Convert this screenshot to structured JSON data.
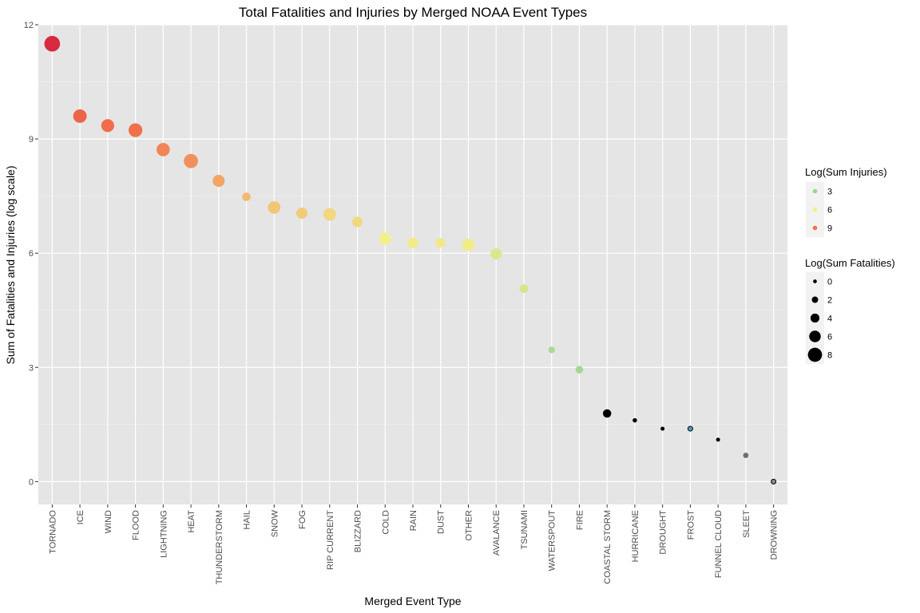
{
  "chart_data": {
    "type": "scatter",
    "title": "Total Fatalities and Injuries by Merged NOAA Event Types",
    "xlabel": "Merged Event Type",
    "ylabel": "Sum of Fatalities and Injuries (log scale)",
    "ylim": [
      -0.6,
      12
    ],
    "yticks": [
      0,
      3,
      6,
      9,
      12
    ],
    "grid": true,
    "legend_position": "right",
    "categories": [
      "TORNADO",
      "ICE",
      "WIND",
      "FLOOD",
      "LIGHTNING",
      "HEAT",
      "THUNDERSTORM",
      "HAIL",
      "SNOW",
      "FOG",
      "RIP CURRENT",
      "BLIZZARD",
      "COLD",
      "RAIN",
      "DUST",
      "OTHER",
      "AVALANCE",
      "TSUNAMI",
      "WATERSPOUT",
      "FIRE",
      "COASTAL STORM",
      "HURRICANE",
      "DROUGHT",
      "FROST",
      "FUNNEL CLOUD",
      "SLEET",
      "DROWNING"
    ],
    "values": [
      11.5,
      9.6,
      9.35,
      9.23,
      8.72,
      8.42,
      7.9,
      7.48,
      7.2,
      7.05,
      7.02,
      6.82,
      6.38,
      6.27,
      6.27,
      6.22,
      5.98,
      5.07,
      3.46,
      2.94,
      1.79,
      1.61,
      1.39,
      1.39,
      1.1,
      0.69,
      0.0
    ],
    "series": [
      {
        "name": "Log(Sum Injuries)",
        "values": [
          11.4,
          9.5,
          9.2,
          9.1,
          8.6,
          8.3,
          7.8,
          7.3,
          7.0,
          6.9,
          6.6,
          6.6,
          6.0,
          6.1,
          6.2,
          6.1,
          5.0,
          4.8,
          3.1,
          2.9,
          0.0,
          0.0,
          0.0,
          1.1,
          0.0,
          0.0,
          0.0
        ]
      },
      {
        "name": "Log(Sum Fatalities)",
        "values": [
          8.6,
          7.0,
          6.6,
          7.2,
          6.8,
          7.5,
          5.9,
          3.3,
          6.3,
          5.3,
          6.4,
          4.6,
          5.9,
          5.0,
          4.0,
          6.3,
          5.4,
          3.5,
          1.9,
          2.7,
          3.2,
          0.3,
          0.0,
          0.0,
          0.0,
          1.0,
          0.6
        ]
      }
    ],
    "legends": [
      {
        "title": "Log(Sum Injuries)",
        "type": "color",
        "items": [
          {
            "label": "3",
            "color": "#99d594"
          },
          {
            "label": "6",
            "color": "#f2f08a"
          },
          {
            "label": "9",
            "color": "#f2734d"
          }
        ]
      },
      {
        "title": "Log(Sum Fatalities)",
        "type": "size",
        "items": [
          {
            "label": "0",
            "value": 0
          },
          {
            "label": "2",
            "value": 2
          },
          {
            "label": "4",
            "value": 4
          },
          {
            "label": "6",
            "value": 6
          },
          {
            "label": "8",
            "value": 8
          }
        ]
      }
    ]
  }
}
